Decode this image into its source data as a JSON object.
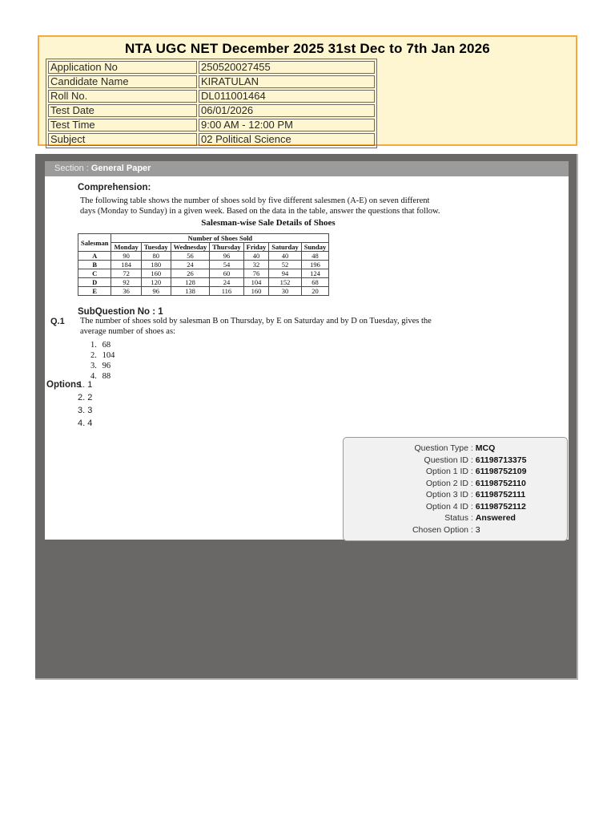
{
  "colors": {
    "header_bg": "#fdf6d0",
    "header_border": "#f6a93e",
    "panel_gray": "#6a6767",
    "section_bar_gray": "#9b9b9b",
    "meta_box_bg": "#f1f1f1",
    "table_border": "#6b6b6b"
  },
  "header": {
    "title": "NTA UGC NET December 2025 31st Dec to 7th Jan 2026",
    "fields": [
      {
        "label": "Application No",
        "value": "250520027455"
      },
      {
        "label": "Candidate Name",
        "value": "KIRATULAN"
      },
      {
        "label": "Roll No.",
        "value": "DL011001464"
      },
      {
        "label": "Test Date",
        "value": "06/01/2026"
      },
      {
        "label": "Test Time",
        "value": "9:00 AM - 12:00 PM"
      },
      {
        "label": "Subject",
        "value": "02 Political Science"
      }
    ]
  },
  "section": {
    "label": "Section : ",
    "name": "General Paper"
  },
  "comprehension": {
    "heading": "Comprehension:",
    "text": "The following table shows the number of shoes sold by five different salesmen (A-E) on seven different\ndays (Monday to Sunday) in a given week. Based on the data in the table, answer the questions that follow.",
    "table_title": "Salesman-wise Sale Details of Shoes",
    "table": {
      "corner_header": "Salesman",
      "group_header": "Number of Shoes Sold",
      "day_headers": [
        "Monday",
        "Tuesday",
        "Wednesday",
        "Thursday",
        "Friday",
        "Saturday",
        "Sunday"
      ],
      "rows": [
        {
          "salesman": "A",
          "values": [
            90,
            80,
            56,
            96,
            40,
            40,
            48
          ]
        },
        {
          "salesman": "B",
          "values": [
            184,
            180,
            24,
            54,
            32,
            52,
            196
          ]
        },
        {
          "salesman": "C",
          "values": [
            72,
            160,
            26,
            60,
            76,
            94,
            124
          ]
        },
        {
          "salesman": "D",
          "values": [
            92,
            120,
            128,
            24,
            104,
            152,
            68
          ]
        },
        {
          "salesman": "E",
          "values": [
            36,
            96,
            138,
            116,
            160,
            30,
            20
          ]
        }
      ]
    }
  },
  "question": {
    "subquestion_label": "SubQuestion No : 1",
    "number": "Q.1",
    "text": "The number of shoes sold by salesman B on Thursday, by E on Saturday and by D on Tuesday, gives the\naverage number of shoes as:",
    "answers": [
      "68",
      "104",
      "96",
      "88"
    ],
    "options_label": "Options",
    "options": [
      "1",
      "2",
      "3",
      "4"
    ]
  },
  "meta_box": {
    "rows": [
      {
        "label": "Question Type",
        "value": "MCQ",
        "bold": true
      },
      {
        "label": "Question ID",
        "value": "61198713375",
        "bold": true
      },
      {
        "label": "Option 1 ID",
        "value": "61198752109",
        "bold": true
      },
      {
        "label": "Option 2 ID",
        "value": "61198752110",
        "bold": true
      },
      {
        "label": "Option 3 ID",
        "value": "61198752111",
        "bold": true
      },
      {
        "label": "Option 4 ID",
        "value": "61198752112",
        "bold": true
      },
      {
        "label": "Status",
        "value": "Answered",
        "bold": true
      },
      {
        "label": "Chosen Option",
        "value": "3",
        "bold": false
      }
    ]
  }
}
